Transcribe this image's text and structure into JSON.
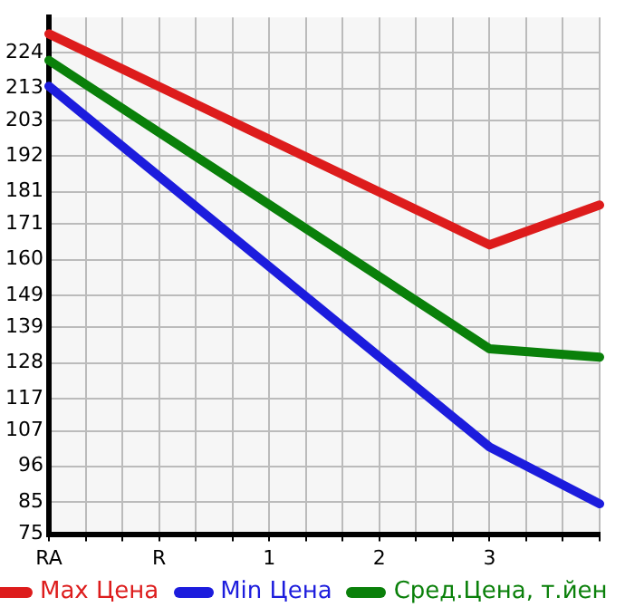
{
  "chart_data": {
    "type": "line",
    "categories": [
      "RA",
      null,
      null,
      "R",
      null,
      null,
      "1",
      null,
      null,
      "2",
      null,
      null,
      "3",
      null,
      null,
      null
    ],
    "series": [
      {
        "name": "Max Цена",
        "color": "#dd1c1c",
        "values": [
          229.9,
          null,
          null,
          null,
          null,
          null,
          null,
          null,
          null,
          null,
          null,
          null,
          164.6,
          null,
          null,
          176.9
        ]
      },
      {
        "name": "Min Цена",
        "color": "#1c1cdd",
        "values": [
          213.7,
          null,
          null,
          null,
          null,
          null,
          null,
          null,
          null,
          null,
          null,
          null,
          102,
          null,
          null,
          84.4
        ]
      },
      {
        "name": "Сред.Цена, т.йен",
        "color": "#0a800a",
        "values": [
          221.7,
          null,
          null,
          null,
          null,
          null,
          null,
          null,
          null,
          null,
          null,
          null,
          132.4,
          null,
          null,
          129.8
        ]
      }
    ],
    "ylim": [
      75,
      235
    ],
    "yticks": [
      75,
      85,
      96,
      107,
      117,
      128,
      139,
      149,
      160,
      171,
      181,
      192,
      203,
      213,
      224
    ],
    "grid": true,
    "legend": "bottom",
    "marker": "none",
    "line_style": "solid"
  }
}
